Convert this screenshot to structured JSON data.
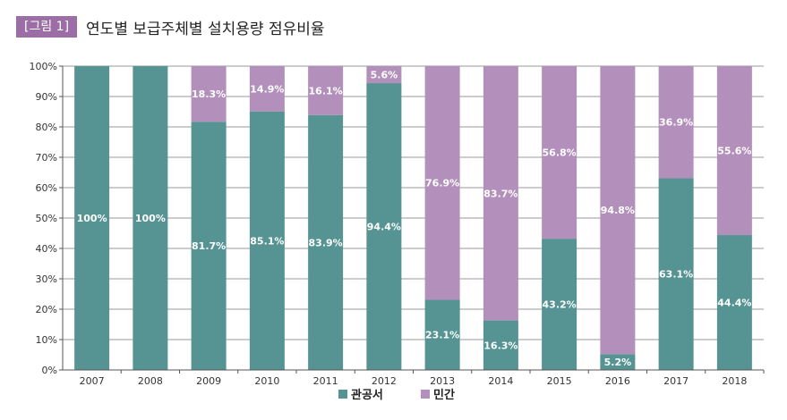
{
  "figure": {
    "label": "[그림 1]",
    "title": "연도별 보급주체별 설치용량 점유비율"
  },
  "chart_data": {
    "type": "bar",
    "stacked": true,
    "categories": [
      "2007",
      "2008",
      "2009",
      "2010",
      "2011",
      "2012",
      "2013",
      "2014",
      "2015",
      "2016",
      "2017",
      "2018"
    ],
    "series": [
      {
        "name": "관공서",
        "color": "#569393",
        "values": [
          100,
          100,
          81.7,
          85.1,
          83.9,
          94.4,
          23.1,
          16.3,
          43.2,
          5.2,
          63.1,
          44.4
        ],
        "labels": [
          "100%",
          "100%",
          "81.7%",
          "85.1%",
          "83.9%",
          "94.4%",
          "23.1%",
          "16.3%",
          "43.2%",
          "5.2%",
          "63.1%",
          "44.4%"
        ]
      },
      {
        "name": "민간",
        "color": "#b390bb",
        "values": [
          0,
          0,
          18.3,
          14.9,
          16.1,
          5.6,
          76.9,
          83.7,
          56.8,
          94.8,
          36.9,
          55.6
        ],
        "labels": [
          "",
          "",
          "18.3%",
          "14.9%",
          "16.1%",
          "5.6%",
          "76.9%",
          "83.7%",
          "56.8%",
          "94.8%",
          "36.9%",
          "55.6%"
        ]
      }
    ],
    "y_ticks": [
      "0%",
      "10%",
      "20%",
      "30%",
      "40%",
      "50%",
      "60%",
      "70%",
      "80%",
      "90%",
      "100%"
    ],
    "ylim": [
      0,
      100
    ],
    "grid": true,
    "legend_position": "bottom"
  }
}
